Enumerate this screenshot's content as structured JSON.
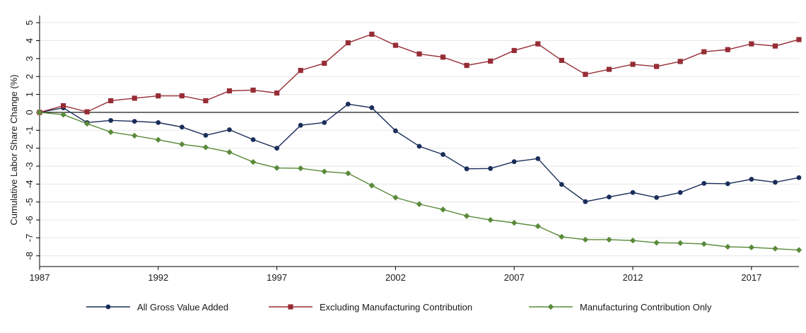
{
  "chart_data": {
    "type": "line",
    "title": "",
    "xlabel": "",
    "ylabel": "Cumulative Labor Share Change (%)",
    "xlim": [
      1987,
      2019
    ],
    "ylim": [
      -8.6,
      5.4
    ],
    "x_ticks": [
      1987,
      1992,
      1997,
      2002,
      2007,
      2012,
      2017
    ],
    "y_ticks": [
      -8,
      -7,
      -6,
      -5,
      -4,
      -3,
      -2,
      -1,
      0,
      1,
      2,
      3,
      4,
      5
    ],
    "grid": "horizontal",
    "zero_line": true,
    "legend_position": "bottom",
    "x": [
      1987,
      1988,
      1989,
      1990,
      1991,
      1992,
      1993,
      1994,
      1995,
      1996,
      1997,
      1998,
      1999,
      2000,
      2001,
      2002,
      2003,
      2004,
      2005,
      2006,
      2007,
      2008,
      2009,
      2010,
      2011,
      2012,
      2013,
      2014,
      2015,
      2016,
      2017,
      2018,
      2019
    ],
    "series": [
      {
        "name": "All Gross Value Added",
        "color": "#1a2e5a",
        "marker": "circle",
        "values": [
          0,
          0.25,
          -0.57,
          -0.45,
          -0.5,
          -0.57,
          -0.82,
          -1.28,
          -0.97,
          -1.52,
          -2.0,
          -0.72,
          -0.57,
          0.46,
          0.26,
          -1.03,
          -1.89,
          -2.35,
          -3.15,
          -3.13,
          -2.75,
          -2.58,
          -4.02,
          -4.98,
          -4.72,
          -4.47,
          -4.75,
          -4.47,
          -3.96,
          -3.98,
          -3.73,
          -3.9,
          -3.64
        ]
      },
      {
        "name": "Excluding Manufacturing Contribution",
        "color": "#962d36",
        "marker": "square",
        "values": [
          0,
          0.37,
          0.03,
          0.65,
          0.79,
          0.92,
          0.92,
          0.65,
          1.2,
          1.24,
          1.08,
          2.34,
          2.74,
          3.88,
          4.36,
          3.74,
          3.26,
          3.08,
          2.62,
          2.86,
          3.45,
          3.82,
          2.9,
          2.12,
          2.4,
          2.68,
          2.56,
          2.84,
          3.38,
          3.5,
          3.82,
          3.7,
          4.06
        ]
      },
      {
        "name": "Manufacturing Contribution Only",
        "color": "#5a8a3a",
        "marker": "diamond",
        "values": [
          0,
          -0.13,
          -0.63,
          -1.1,
          -1.3,
          -1.53,
          -1.78,
          -1.95,
          -2.22,
          -2.77,
          -3.1,
          -3.12,
          -3.3,
          -3.4,
          -4.08,
          -4.75,
          -5.12,
          -5.42,
          -5.78,
          -6.0,
          -6.16,
          -6.35,
          -6.94,
          -7.1,
          -7.1,
          -7.15,
          -7.27,
          -7.29,
          -7.34,
          -7.5,
          -7.53,
          -7.6,
          -7.68
        ]
      }
    ]
  }
}
